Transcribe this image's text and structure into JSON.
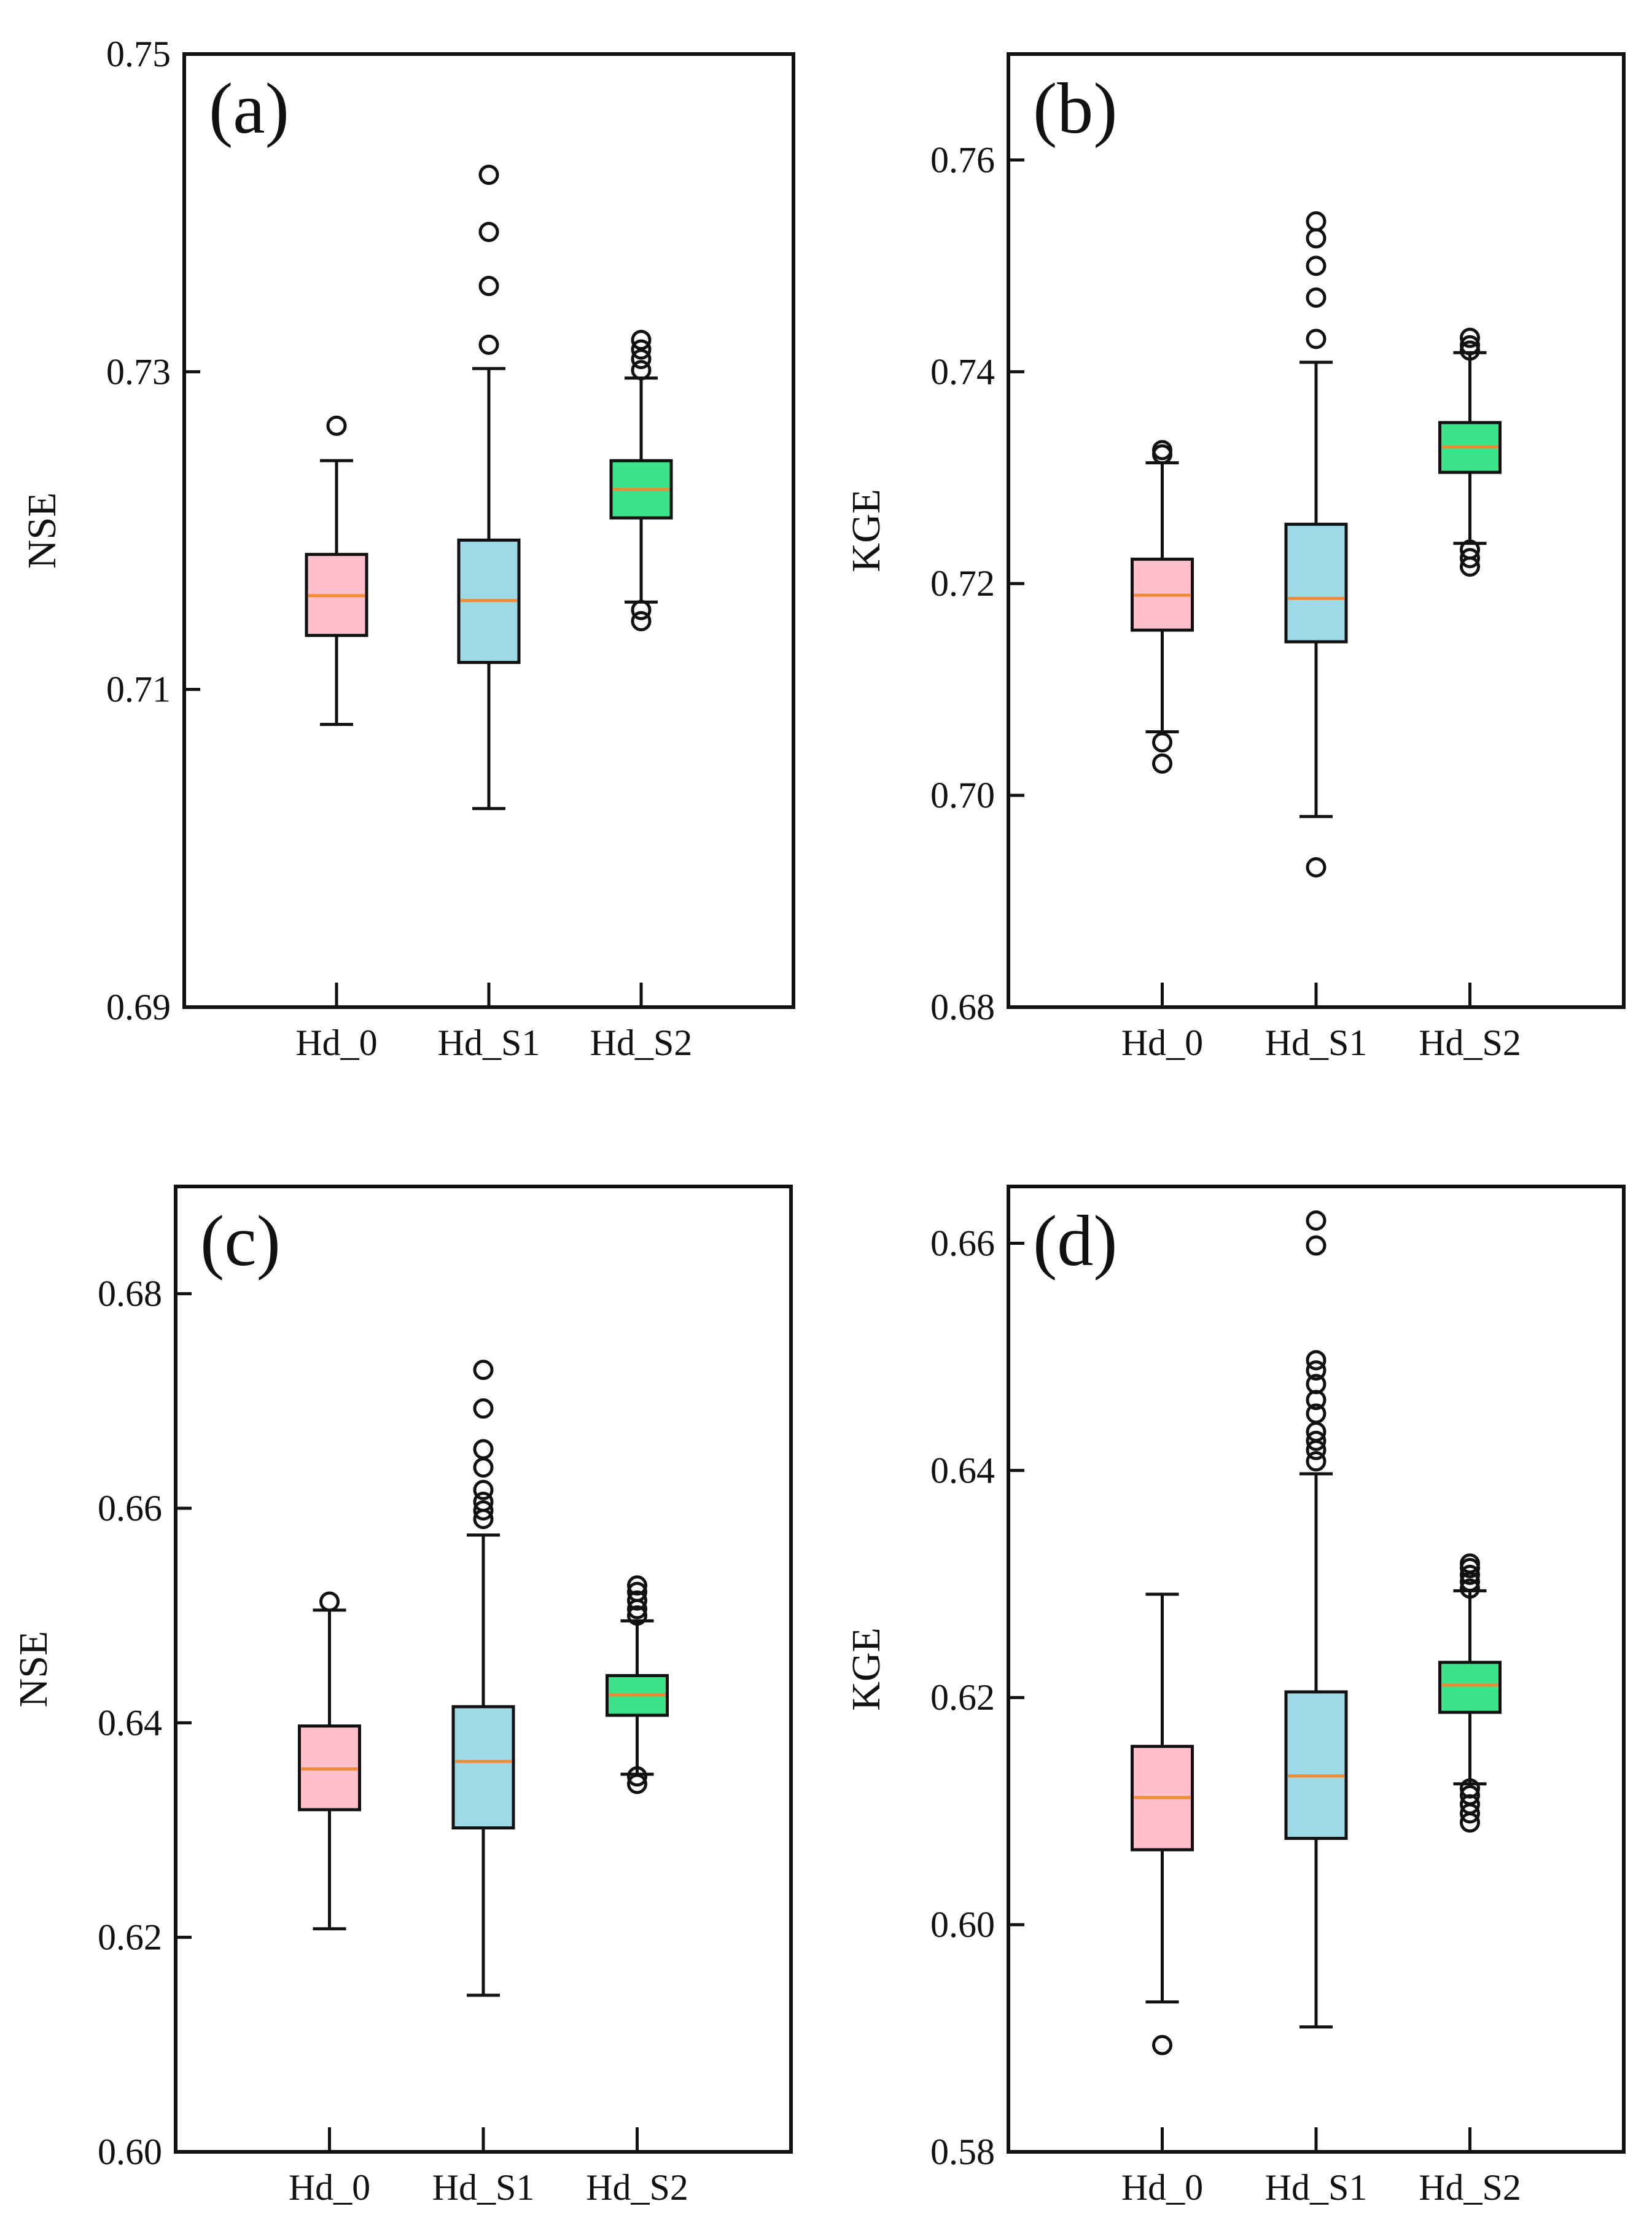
{
  "chart_data": [
    {
      "type": "box",
      "panel_label": "(a)",
      "ylabel": "NSE",
      "ylim": [
        0.69,
        0.75
      ],
      "yticks": [
        0.69,
        0.71,
        0.73,
        0.75
      ],
      "ytick_labels": [
        "0.69",
        "0.71",
        "0.73",
        "0.75"
      ],
      "categories": [
        "Hd_0",
        "Hd_S1",
        "Hd_S2"
      ],
      "boxes": [
        {
          "name": "Hd_0",
          "whislo": 0.7078,
          "q1": 0.7134,
          "med": 0.7159,
          "q3": 0.7185,
          "whishi": 0.7244,
          "fliers": [
            0.7266
          ]
        },
        {
          "name": "Hd_S1",
          "whislo": 0.7025,
          "q1": 0.7117,
          "med": 0.7156,
          "q3": 0.7194,
          "whishi": 0.7302,
          "fliers": [
            0.7317,
            0.7354,
            0.7388,
            0.7424
          ]
        },
        {
          "name": "Hd_S2",
          "whislo": 0.7155,
          "q1": 0.7208,
          "med": 0.7226,
          "q3": 0.7244,
          "whishi": 0.7296,
          "fliers": [
            0.7143,
            0.715,
            0.7301,
            0.7308,
            0.7314,
            0.732
          ]
        }
      ]
    },
    {
      "type": "box",
      "panel_label": "(b)",
      "ylabel": "KGE",
      "ylim": [
        0.68,
        0.77
      ],
      "yticks": [
        0.68,
        0.7,
        0.72,
        0.74,
        0.76
      ],
      "ytick_labels": [
        "0.68",
        "0.70",
        "0.72",
        "0.74",
        "0.76"
      ],
      "categories": [
        "Hd_0",
        "Hd_S1",
        "Hd_S2"
      ],
      "boxes": [
        {
          "name": "Hd_0",
          "whislo": 0.706,
          "q1": 0.7156,
          "med": 0.7189,
          "q3": 0.7223,
          "whishi": 0.7314,
          "fliers": [
            0.703,
            0.705,
            0.7322,
            0.7326
          ]
        },
        {
          "name": "Hd_S1",
          "whislo": 0.698,
          "q1": 0.7145,
          "med": 0.7186,
          "q3": 0.7256,
          "whishi": 0.7409,
          "fliers": [
            0.6932,
            0.7431,
            0.747,
            0.75,
            0.7526,
            0.7542
          ]
        },
        {
          "name": "Hd_S2",
          "whislo": 0.7238,
          "q1": 0.7305,
          "med": 0.7329,
          "q3": 0.7352,
          "whishi": 0.7418,
          "fliers": [
            0.7216,
            0.7224,
            0.7232,
            0.742,
            0.7425,
            0.7432
          ]
        }
      ]
    },
    {
      "type": "box",
      "panel_label": "(c)",
      "ylabel": "NSE",
      "ylim": [
        0.6,
        0.69
      ],
      "yticks": [
        0.6,
        0.62,
        0.64,
        0.66,
        0.68
      ],
      "ytick_labels": [
        "0.60",
        "0.62",
        "0.64",
        "0.66",
        "0.68"
      ],
      "categories": [
        "Hd_0",
        "Hd_S1",
        "Hd_S2"
      ],
      "boxes": [
        {
          "name": "Hd_0",
          "whislo": 0.6208,
          "q1": 0.6319,
          "med": 0.6357,
          "q3": 0.6397,
          "whishi": 0.6505,
          "fliers": [
            0.6513
          ]
        },
        {
          "name": "Hd_S1",
          "whislo": 0.6146,
          "q1": 0.6302,
          "med": 0.6364,
          "q3": 0.6415,
          "whishi": 0.6575,
          "fliers": [
            0.659,
            0.6598,
            0.6606,
            0.6617,
            0.6638,
            0.6655,
            0.6693,
            0.6729
          ]
        },
        {
          "name": "Hd_S2",
          "whislo": 0.6352,
          "q1": 0.6407,
          "med": 0.6426,
          "q3": 0.6444,
          "whishi": 0.6495,
          "fliers": [
            0.6343,
            0.635,
            0.65,
            0.6506,
            0.6514,
            0.6522,
            0.6528
          ]
        }
      ]
    },
    {
      "type": "box",
      "panel_label": "(d)",
      "ylabel": "KGE",
      "ylim": [
        0.58,
        0.665
      ],
      "yticks": [
        0.58,
        0.6,
        0.62,
        0.64,
        0.66
      ],
      "ytick_labels": [
        "0.58",
        "0.60",
        "0.62",
        "0.64",
        "0.66"
      ],
      "categories": [
        "Hd_0",
        "Hd_S1",
        "Hd_S2"
      ],
      "boxes": [
        {
          "name": "Hd_0",
          "whislo": 0.5932,
          "q1": 0.6066,
          "med": 0.6112,
          "q3": 0.6157,
          "whishi": 0.6291,
          "fliers": [
            0.5894
          ]
        },
        {
          "name": "Hd_S1",
          "whislo": 0.591,
          "q1": 0.6076,
          "med": 0.6131,
          "q3": 0.6205,
          "whishi": 0.6397,
          "fliers": [
            0.6408,
            0.6418,
            0.6426,
            0.6434,
            0.645,
            0.6462,
            0.6476,
            0.6488,
            0.6497,
            0.6598,
            0.662
          ]
        },
        {
          "name": "Hd_S2",
          "whislo": 0.6124,
          "q1": 0.6187,
          "med": 0.6211,
          "q3": 0.6231,
          "whishi": 0.6294,
          "fliers": [
            0.609,
            0.6098,
            0.6106,
            0.6114,
            0.612,
            0.6296,
            0.6302,
            0.6308,
            0.6314,
            0.6318
          ]
        }
      ]
    }
  ],
  "style": {
    "box_colors": [
      "#FFC0CB",
      "#9ED9E6",
      "#3BE38A"
    ],
    "median_color": "#F08A34",
    "line_color": "#111111"
  }
}
